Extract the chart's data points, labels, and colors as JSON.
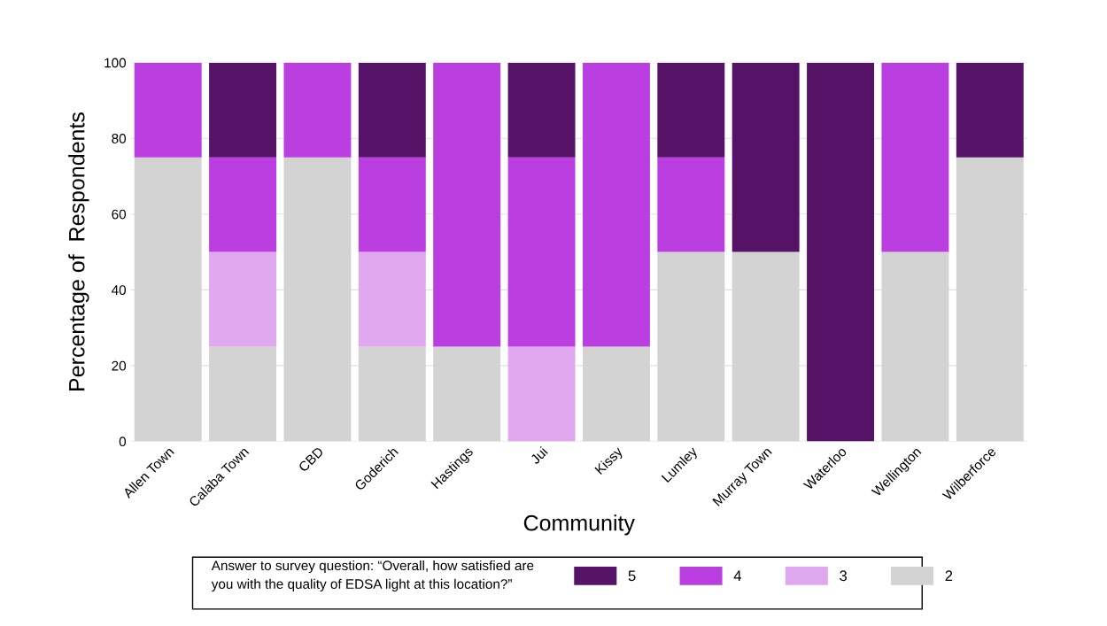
{
  "chart_data": {
    "type": "bar",
    "stacked": true,
    "xlabel": "Community",
    "ylabel": "Percentage of  Respondents",
    "legend_title": "Answer to survey question: “Overall, how satisfied are you with the quality of EDSA light at this location?”",
    "categories": [
      "Allen Town",
      "Calaba Town",
      "CBD",
      "Goderich",
      "Hastings",
      "Jui",
      "Kissy",
      "Lumley",
      "Murray Town",
      "Waterloo",
      "Wellington",
      "Wilberforce"
    ],
    "series": [
      {
        "name": "2",
        "color": "#d3d3d3",
        "values": [
          75,
          25,
          75,
          25,
          25,
          0,
          25,
          50,
          50,
          0,
          50,
          75
        ]
      },
      {
        "name": "3",
        "color": "#e0a8ee",
        "values": [
          0,
          25,
          0,
          25,
          0,
          25,
          0,
          0,
          0,
          0,
          0,
          0
        ]
      },
      {
        "name": "4",
        "color": "#bb3fe0",
        "values": [
          25,
          25,
          25,
          25,
          75,
          50,
          75,
          25,
          0,
          0,
          50,
          0
        ]
      },
      {
        "name": "5",
        "color": "#561266",
        "values": [
          0,
          25,
          0,
          25,
          0,
          25,
          0,
          25,
          50,
          100,
          0,
          25
        ]
      }
    ],
    "ylim": [
      0,
      100
    ],
    "yticks": [
      0,
      20,
      40,
      60,
      80,
      100
    ],
    "grid": "y",
    "legend": "bottom"
  }
}
